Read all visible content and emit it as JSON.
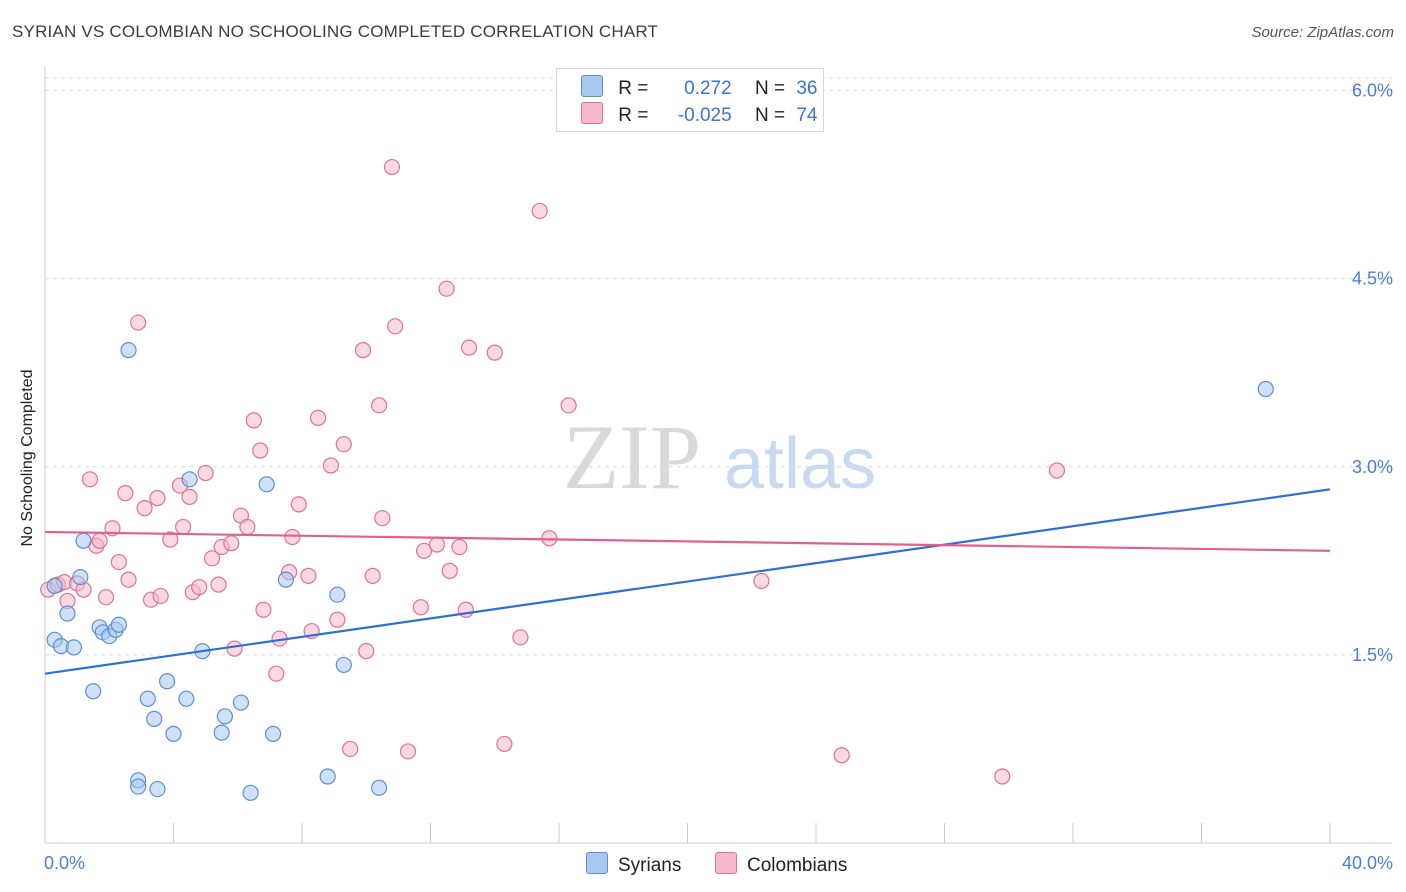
{
  "header": {
    "title": "SYRIAN VS COLOMBIAN NO SCHOOLING COMPLETED CORRELATION CHART",
    "source": "Source: ZipAtlas.com"
  },
  "watermark": {
    "zip": "ZIP",
    "atlas": "atlas"
  },
  "legend": {
    "rows": [
      {
        "r_label": "R =",
        "r_value": "0.272",
        "n_label": "N =",
        "n_value": "36",
        "color": "#a8c8f0",
        "border": "#5a8fd8"
      },
      {
        "r_label": "R =",
        "r_value": "-0.025",
        "n_label": "N =",
        "n_value": "74",
        "color": "#f7b8cc",
        "border": "#e07096"
      }
    ]
  },
  "bottom_legend": [
    {
      "label": "Syrians",
      "color": "#a8c8f0",
      "border": "#5a8fd8"
    },
    {
      "label": "Colombians",
      "color": "#f7b8cc",
      "border": "#e07096"
    }
  ],
  "chart_data": {
    "type": "scatter",
    "title": "SYRIAN VS COLOMBIAN NO SCHOOLING COMPLETED CORRELATION CHART",
    "xlabel": "",
    "ylabel": "No Schooling Completed",
    "xlim": [
      0,
      40
    ],
    "ylim": [
      0,
      6.2
    ],
    "x_tick_labels": [
      "0.0%",
      "40.0%"
    ],
    "y_ticks": [
      1.5,
      3.0,
      4.5,
      6.0
    ],
    "y_tick_labels": [
      "1.5%",
      "3.0%",
      "4.5%",
      "6.0%"
    ],
    "grid": true,
    "legend_placement": "top-center",
    "series": [
      {
        "name": "Syrians",
        "color": "#5a8fd8",
        "fill": "#a8c8f0",
        "trend": {
          "x": [
            0,
            40
          ],
          "y": [
            1.35,
            2.82
          ]
        },
        "points": [
          [
            0.3,
            2.05
          ],
          [
            0.3,
            1.62
          ],
          [
            0.5,
            1.57
          ],
          [
            0.7,
            1.83
          ],
          [
            0.9,
            1.56
          ],
          [
            1.1,
            2.12
          ],
          [
            1.2,
            2.41
          ],
          [
            1.5,
            1.21
          ],
          [
            1.7,
            1.72
          ],
          [
            1.8,
            1.68
          ],
          [
            2.0,
            1.65
          ],
          [
            2.2,
            1.7
          ],
          [
            2.3,
            1.74
          ],
          [
            2.6,
            3.93
          ],
          [
            2.9,
            0.5
          ],
          [
            2.9,
            0.45
          ],
          [
            3.2,
            1.15
          ],
          [
            3.4,
            0.99
          ],
          [
            3.5,
            0.43
          ],
          [
            3.8,
            1.29
          ],
          [
            4.0,
            0.87
          ],
          [
            4.4,
            1.15
          ],
          [
            4.5,
            2.9
          ],
          [
            4.9,
            1.53
          ],
          [
            5.5,
            0.88
          ],
          [
            5.6,
            1.01
          ],
          [
            6.1,
            1.12
          ],
          [
            6.4,
            0.4
          ],
          [
            6.9,
            2.86
          ],
          [
            7.1,
            0.87
          ],
          [
            7.5,
            2.1
          ],
          [
            8.8,
            0.53
          ],
          [
            9.1,
            1.98
          ],
          [
            9.3,
            1.42
          ],
          [
            10.4,
            0.44
          ],
          [
            38.0,
            3.62
          ]
        ]
      },
      {
        "name": "Colombians",
        "color": "#e07096",
        "fill": "#f7b8cc",
        "trend": {
          "x": [
            0,
            40
          ],
          "y": [
            2.48,
            2.33
          ]
        },
        "points": [
          [
            0.1,
            2.02
          ],
          [
            0.4,
            2.06
          ],
          [
            0.6,
            2.08
          ],
          [
            0.7,
            1.93
          ],
          [
            1.0,
            2.07
          ],
          [
            1.2,
            2.02
          ],
          [
            1.4,
            2.9
          ],
          [
            1.6,
            2.37
          ],
          [
            1.7,
            2.41
          ],
          [
            1.9,
            1.96
          ],
          [
            2.1,
            2.51
          ],
          [
            2.3,
            2.24
          ],
          [
            2.5,
            2.79
          ],
          [
            2.6,
            2.1
          ],
          [
            2.9,
            4.15
          ],
          [
            3.1,
            2.67
          ],
          [
            3.3,
            1.94
          ],
          [
            3.5,
            2.75
          ],
          [
            3.6,
            1.97
          ],
          [
            3.9,
            2.42
          ],
          [
            4.2,
            2.85
          ],
          [
            4.3,
            2.52
          ],
          [
            4.5,
            2.76
          ],
          [
            4.6,
            2.0
          ],
          [
            4.8,
            2.04
          ],
          [
            5.0,
            2.95
          ],
          [
            5.2,
            2.27
          ],
          [
            5.4,
            2.06
          ],
          [
            5.5,
            2.36
          ],
          [
            5.8,
            2.39
          ],
          [
            5.9,
            1.55
          ],
          [
            6.1,
            2.61
          ],
          [
            6.3,
            2.52
          ],
          [
            6.5,
            3.37
          ],
          [
            6.7,
            3.13
          ],
          [
            6.8,
            1.86
          ],
          [
            7.2,
            1.35
          ],
          [
            7.3,
            1.63
          ],
          [
            7.6,
            2.16
          ],
          [
            7.7,
            2.44
          ],
          [
            7.9,
            2.7
          ],
          [
            8.2,
            2.13
          ],
          [
            8.3,
            1.69
          ],
          [
            8.5,
            3.39
          ],
          [
            8.9,
            3.01
          ],
          [
            9.1,
            1.78
          ],
          [
            9.3,
            3.18
          ],
          [
            9.5,
            0.75
          ],
          [
            9.9,
            3.93
          ],
          [
            10.0,
            1.53
          ],
          [
            10.2,
            2.13
          ],
          [
            10.4,
            3.49
          ],
          [
            10.5,
            2.59
          ],
          [
            10.8,
            5.39
          ],
          [
            10.9,
            4.12
          ],
          [
            11.3,
            0.73
          ],
          [
            11.7,
            1.88
          ],
          [
            11.8,
            2.33
          ],
          [
            12.2,
            2.38
          ],
          [
            12.5,
            4.42
          ],
          [
            12.6,
            2.17
          ],
          [
            12.9,
            2.36
          ],
          [
            13.1,
            1.86
          ],
          [
            13.2,
            3.95
          ],
          [
            14.0,
            3.91
          ],
          [
            14.3,
            0.79
          ],
          [
            14.8,
            1.64
          ],
          [
            15.7,
            2.43
          ],
          [
            15.4,
            5.04
          ],
          [
            16.3,
            3.49
          ],
          [
            22.3,
            2.09
          ],
          [
            24.8,
            0.7
          ],
          [
            29.8,
            0.53
          ],
          [
            31.5,
            2.97
          ]
        ]
      }
    ]
  }
}
